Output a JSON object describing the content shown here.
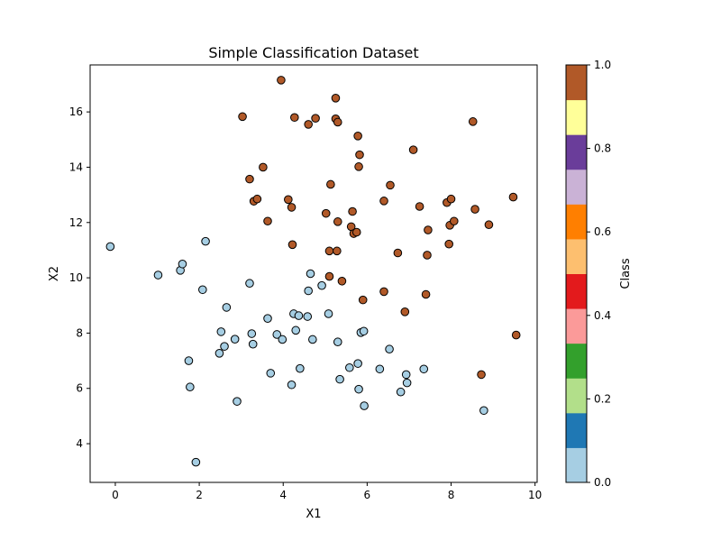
{
  "chart_data": {
    "type": "scatter",
    "title": "Simple Classification Dataset",
    "xlabel": "X1",
    "ylabel": "X2",
    "xlim": [
      -0.6,
      10.05
    ],
    "ylim": [
      2.6,
      17.7
    ],
    "xticks": [
      0,
      2,
      4,
      6,
      8,
      10
    ],
    "yticks": [
      4,
      6,
      8,
      10,
      12,
      14,
      16
    ],
    "grid": false,
    "colorbar": {
      "label": "Class",
      "range": [
        0,
        1
      ],
      "ticks": [
        0.0,
        0.2,
        0.4,
        0.6,
        0.8,
        1.0
      ],
      "tick_labels": [
        "0.0",
        "0.2",
        "0.4",
        "0.6",
        "0.8",
        "1.0"
      ],
      "colormap": "Paired",
      "colors": [
        "#a6cee3",
        "#1f78b4",
        "#b2df8a",
        "#33a02c",
        "#fb9a99",
        "#e31a1c",
        "#fdbf6f",
        "#ff7f00",
        "#cab2d6",
        "#6a3d9a",
        "#ffff99",
        "#b15928"
      ]
    },
    "class_colors": {
      "0": "#a6cee3",
      "1": "#b15928"
    },
    "marker_edge_color": "#000000",
    "series": [
      {
        "class": 0,
        "points": [
          [
            -0.12,
            11.13
          ],
          [
            1.02,
            10.1
          ],
          [
            1.55,
            10.27
          ],
          [
            1.6,
            10.5
          ],
          [
            2.15,
            11.32
          ],
          [
            2.08,
            9.57
          ],
          [
            1.75,
            7.0
          ],
          [
            1.78,
            6.05
          ],
          [
            1.92,
            3.33
          ],
          [
            2.48,
            7.27
          ],
          [
            2.52,
            8.05
          ],
          [
            2.6,
            7.52
          ],
          [
            2.65,
            8.93
          ],
          [
            2.85,
            7.78
          ],
          [
            2.9,
            5.53
          ],
          [
            3.2,
            9.8
          ],
          [
            3.25,
            7.98
          ],
          [
            3.28,
            7.6
          ],
          [
            3.63,
            8.53
          ],
          [
            3.7,
            6.55
          ],
          [
            3.85,
            7.95
          ],
          [
            3.98,
            7.77
          ],
          [
            4.2,
            6.13
          ],
          [
            4.25,
            8.7
          ],
          [
            4.3,
            8.1
          ],
          [
            4.37,
            8.63
          ],
          [
            4.4,
            6.72
          ],
          [
            4.58,
            8.6
          ],
          [
            4.6,
            9.53
          ],
          [
            4.65,
            10.15
          ],
          [
            4.7,
            7.77
          ],
          [
            4.92,
            9.72
          ],
          [
            5.08,
            8.7
          ],
          [
            5.3,
            7.68
          ],
          [
            5.35,
            6.33
          ],
          [
            5.58,
            6.75
          ],
          [
            5.78,
            6.9
          ],
          [
            5.8,
            5.97
          ],
          [
            5.85,
            8.02
          ],
          [
            5.92,
            8.07
          ],
          [
            5.93,
            5.37
          ],
          [
            6.3,
            6.7
          ],
          [
            6.53,
            7.42
          ],
          [
            6.8,
            5.87
          ],
          [
            6.93,
            6.5
          ],
          [
            6.95,
            6.2
          ],
          [
            7.35,
            6.7
          ],
          [
            8.78,
            5.2
          ]
        ]
      },
      {
        "class": 1,
        "points": [
          [
            3.03,
            15.83
          ],
          [
            3.2,
            13.57
          ],
          [
            3.3,
            12.77
          ],
          [
            3.38,
            12.85
          ],
          [
            3.52,
            14.0
          ],
          [
            3.63,
            12.05
          ],
          [
            3.95,
            17.15
          ],
          [
            4.12,
            12.83
          ],
          [
            4.2,
            12.55
          ],
          [
            4.22,
            11.2
          ],
          [
            4.27,
            15.8
          ],
          [
            4.6,
            15.55
          ],
          [
            4.77,
            15.77
          ],
          [
            5.02,
            12.33
          ],
          [
            5.1,
            10.97
          ],
          [
            5.1,
            10.05
          ],
          [
            5.13,
            13.38
          ],
          [
            5.25,
            15.75
          ],
          [
            5.25,
            16.5
          ],
          [
            5.28,
            10.97
          ],
          [
            5.3,
            15.63
          ],
          [
            5.3,
            12.03
          ],
          [
            5.4,
            9.88
          ],
          [
            5.62,
            11.85
          ],
          [
            5.65,
            12.4
          ],
          [
            5.68,
            11.6
          ],
          [
            5.75,
            11.65
          ],
          [
            5.78,
            15.13
          ],
          [
            5.8,
            14.02
          ],
          [
            5.82,
            14.45
          ],
          [
            5.9,
            9.2
          ],
          [
            6.4,
            12.78
          ],
          [
            6.4,
            9.5
          ],
          [
            6.55,
            13.35
          ],
          [
            6.73,
            10.9
          ],
          [
            6.9,
            8.77
          ],
          [
            7.1,
            14.63
          ],
          [
            7.25,
            12.58
          ],
          [
            7.4,
            9.4
          ],
          [
            7.43,
            10.82
          ],
          [
            7.45,
            11.73
          ],
          [
            7.9,
            12.72
          ],
          [
            7.95,
            11.22
          ],
          [
            7.97,
            11.9
          ],
          [
            8.0,
            12.85
          ],
          [
            8.07,
            12.05
          ],
          [
            8.52,
            15.65
          ],
          [
            8.57,
            12.48
          ],
          [
            8.72,
            6.5
          ],
          [
            8.9,
            11.92
          ],
          [
            9.48,
            12.92
          ],
          [
            9.55,
            7.93
          ]
        ]
      }
    ]
  }
}
